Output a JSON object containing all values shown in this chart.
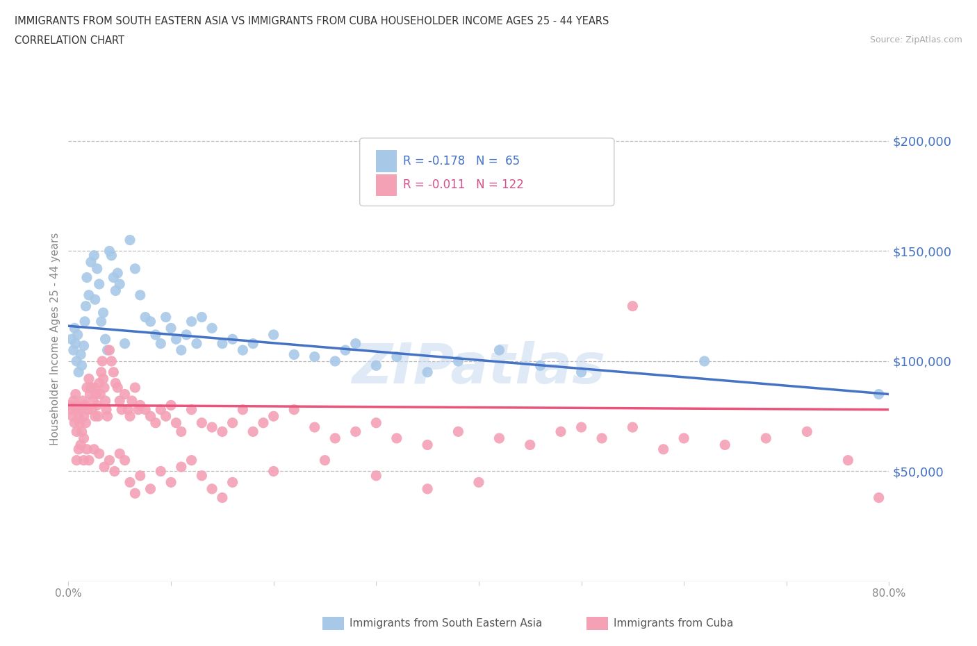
{
  "title_line1": "IMMIGRANTS FROM SOUTH EASTERN ASIA VS IMMIGRANTS FROM CUBA HOUSEHOLDER INCOME AGES 25 - 44 YEARS",
  "title_line2": "CORRELATION CHART",
  "source_text": "Source: ZipAtlas.com",
  "ylabel": "Householder Income Ages 25 - 44 years",
  "xlim": [
    0.0,
    0.8
  ],
  "ylim": [
    0,
    220000
  ],
  "ytick_values": [
    50000,
    100000,
    150000,
    200000
  ],
  "ytick_labels": [
    "$50,000",
    "$100,000",
    "$150,000",
    "$200,000"
  ],
  "xtick_values": [
    0.0,
    0.1,
    0.2,
    0.3,
    0.4,
    0.5,
    0.6,
    0.7,
    0.8
  ],
  "xtick_labels": [
    "0.0%",
    "",
    "",
    "",
    "",
    "",
    "",
    "",
    "80.0%"
  ],
  "color_sea": "#a8c8e8",
  "color_cuba": "#f4a0b5",
  "color_sea_line": "#4472c4",
  "color_cuba_line": "#e8547a",
  "color_ytick": "#4472c4",
  "background_color": "#ffffff",
  "sea_scatter_x": [
    0.003,
    0.005,
    0.006,
    0.007,
    0.008,
    0.009,
    0.01,
    0.012,
    0.013,
    0.015,
    0.016,
    0.017,
    0.018,
    0.02,
    0.022,
    0.025,
    0.026,
    0.028,
    0.03,
    0.032,
    0.034,
    0.036,
    0.038,
    0.04,
    0.042,
    0.044,
    0.046,
    0.048,
    0.05,
    0.055,
    0.06,
    0.065,
    0.07,
    0.075,
    0.08,
    0.085,
    0.09,
    0.095,
    0.1,
    0.105,
    0.11,
    0.115,
    0.12,
    0.125,
    0.13,
    0.14,
    0.15,
    0.16,
    0.17,
    0.18,
    0.2,
    0.22,
    0.24,
    0.26,
    0.27,
    0.28,
    0.3,
    0.32,
    0.35,
    0.38,
    0.42,
    0.46,
    0.5,
    0.62,
    0.79
  ],
  "sea_scatter_y": [
    110000,
    105000,
    115000,
    108000,
    100000,
    112000,
    95000,
    103000,
    98000,
    107000,
    118000,
    125000,
    138000,
    130000,
    145000,
    148000,
    128000,
    142000,
    135000,
    118000,
    122000,
    110000,
    105000,
    150000,
    148000,
    138000,
    132000,
    140000,
    135000,
    108000,
    155000,
    142000,
    130000,
    120000,
    118000,
    112000,
    108000,
    120000,
    115000,
    110000,
    105000,
    112000,
    118000,
    108000,
    120000,
    115000,
    108000,
    110000,
    105000,
    108000,
    112000,
    103000,
    102000,
    100000,
    105000,
    108000,
    98000,
    102000,
    95000,
    100000,
    105000,
    98000,
    95000,
    100000,
    85000
  ],
  "cuba_scatter_x": [
    0.002,
    0.003,
    0.004,
    0.005,
    0.006,
    0.007,
    0.008,
    0.008,
    0.009,
    0.01,
    0.011,
    0.012,
    0.013,
    0.014,
    0.015,
    0.015,
    0.016,
    0.017,
    0.018,
    0.019,
    0.02,
    0.021,
    0.022,
    0.023,
    0.024,
    0.025,
    0.026,
    0.027,
    0.028,
    0.029,
    0.03,
    0.031,
    0.032,
    0.033,
    0.034,
    0.035,
    0.036,
    0.037,
    0.038,
    0.04,
    0.042,
    0.044,
    0.046,
    0.048,
    0.05,
    0.052,
    0.055,
    0.058,
    0.06,
    0.062,
    0.065,
    0.068,
    0.07,
    0.075,
    0.08,
    0.085,
    0.09,
    0.095,
    0.1,
    0.105,
    0.11,
    0.12,
    0.13,
    0.14,
    0.15,
    0.16,
    0.17,
    0.18,
    0.19,
    0.2,
    0.22,
    0.24,
    0.26,
    0.28,
    0.3,
    0.32,
    0.35,
    0.38,
    0.42,
    0.45,
    0.48,
    0.5,
    0.52,
    0.55,
    0.58,
    0.6,
    0.64,
    0.68,
    0.72,
    0.76,
    0.008,
    0.01,
    0.012,
    0.015,
    0.018,
    0.02,
    0.025,
    0.03,
    0.035,
    0.04,
    0.045,
    0.05,
    0.055,
    0.06,
    0.065,
    0.07,
    0.08,
    0.09,
    0.1,
    0.11,
    0.12,
    0.13,
    0.14,
    0.15,
    0.16,
    0.2,
    0.25,
    0.3,
    0.35,
    0.4,
    0.55,
    0.79
  ],
  "cuba_scatter_y": [
    80000,
    78000,
    75000,
    82000,
    72000,
    85000,
    78000,
    68000,
    80000,
    75000,
    72000,
    78000,
    68000,
    82000,
    75000,
    65000,
    80000,
    72000,
    88000,
    78000,
    92000,
    85000,
    88000,
    78000,
    82000,
    88000,
    75000,
    85000,
    80000,
    75000,
    90000,
    85000,
    95000,
    100000,
    92000,
    88000,
    82000,
    78000,
    75000,
    105000,
    100000,
    95000,
    90000,
    88000,
    82000,
    78000,
    85000,
    78000,
    75000,
    82000,
    88000,
    78000,
    80000,
    78000,
    75000,
    72000,
    78000,
    75000,
    80000,
    72000,
    68000,
    78000,
    72000,
    70000,
    68000,
    72000,
    78000,
    68000,
    72000,
    75000,
    78000,
    70000,
    65000,
    68000,
    72000,
    65000,
    62000,
    68000,
    65000,
    62000,
    68000,
    70000,
    65000,
    70000,
    60000,
    65000,
    62000,
    65000,
    68000,
    55000,
    55000,
    60000,
    62000,
    55000,
    60000,
    55000,
    60000,
    58000,
    52000,
    55000,
    50000,
    58000,
    55000,
    45000,
    40000,
    48000,
    42000,
    50000,
    45000,
    52000,
    55000,
    48000,
    42000,
    38000,
    45000,
    50000,
    55000,
    48000,
    42000,
    45000,
    125000,
    38000
  ]
}
